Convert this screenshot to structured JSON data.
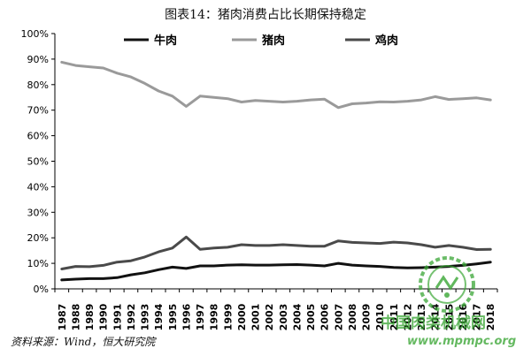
{
  "title": "图表14：猪肉消费占比长期保持稳定",
  "source": "资料来源：Wind，恒大研究院",
  "watermark": {
    "line1": "中国肉类机械网",
    "line2": "www.mpmpc.org",
    "color": "#3aa635"
  },
  "chart_data": {
    "type": "line",
    "x": [
      "1987",
      "1988",
      "1989",
      "1990",
      "1991",
      "1992",
      "1993",
      "1994",
      "1995",
      "1996",
      "1997",
      "1998",
      "1999",
      "2000",
      "2001",
      "2002",
      "2003",
      "2004",
      "2005",
      "2006",
      "2007",
      "2008",
      "2009",
      "2010",
      "2011",
      "2012",
      "2013",
      "2014",
      "2015",
      "2016",
      "2017",
      "2018"
    ],
    "ylim": [
      0,
      100
    ],
    "yticks": [
      "0%",
      "10%",
      "20%",
      "30%",
      "40%",
      "50%",
      "60%",
      "70%",
      "80%",
      "90%",
      "100%"
    ],
    "grid": false,
    "legend_position": "top",
    "series": [
      {
        "name": "牛肉",
        "color": "#111111",
        "values": [
          3.5,
          3.8,
          4.0,
          4.0,
          4.4,
          5.5,
          6.3,
          7.5,
          8.5,
          8.0,
          9.0,
          9.0,
          9.3,
          9.4,
          9.3,
          9.3,
          9.4,
          9.5,
          9.3,
          9.0,
          10.0,
          9.3,
          9.0,
          8.8,
          8.4,
          8.2,
          8.3,
          8.5,
          8.8,
          9.2,
          9.8,
          10.5
        ]
      },
      {
        "name": "猪肉",
        "color": "#9a9a9a",
        "values": [
          88.8,
          87.5,
          87.0,
          86.5,
          84.5,
          83.0,
          80.5,
          77.5,
          75.5,
          71.5,
          75.5,
          75.0,
          74.5,
          73.2,
          73.8,
          73.5,
          73.2,
          73.5,
          74.0,
          74.3,
          71.0,
          72.5,
          72.8,
          73.3,
          73.2,
          73.5,
          74.0,
          75.3,
          74.2,
          74.5,
          74.8,
          74.0
        ]
      },
      {
        "name": "鸡肉",
        "color": "#4a4a4a",
        "values": [
          7.8,
          8.8,
          8.7,
          9.2,
          10.5,
          11.0,
          12.5,
          14.5,
          16.0,
          20.3,
          15.5,
          16.0,
          16.3,
          17.3,
          17.0,
          17.0,
          17.3,
          17.0,
          16.7,
          16.7,
          18.8,
          18.2,
          18.0,
          17.8,
          18.3,
          18.0,
          17.3,
          16.3,
          17.0,
          16.3,
          15.4,
          15.5
        ]
      }
    ]
  }
}
